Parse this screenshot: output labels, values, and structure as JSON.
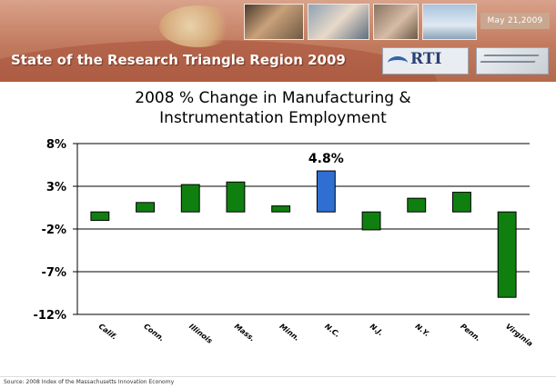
{
  "slide": {
    "header_title": "State of the Research Triangle Region 2009",
    "date": "May 21,2009",
    "logo_text": "RTI",
    "source": "Source: 2008 Index of the Massachusetts Innovation Economy"
  },
  "colors": {
    "bar_default": "#0f7f0f",
    "bar_highlight": "#2f6fd1",
    "bar_stroke": "#000000"
  },
  "chart_data": {
    "type": "bar",
    "title": "2008 % Change in Manufacturing & Instrumentation Employment",
    "categories": [
      "Calif.",
      "Conn.",
      "Illinois",
      "Mass.",
      "Minn.",
      "N.C.",
      "N.J.",
      "N.Y.",
      "Penn.",
      "Virginia"
    ],
    "values": [
      -1.0,
      1.1,
      3.2,
      3.5,
      0.7,
      4.8,
      -2.1,
      1.6,
      2.3,
      -10.0
    ],
    "highlight": "N.C.",
    "data_labels": {
      "N.C.": "4.8%"
    },
    "ylim": [
      -12,
      8
    ],
    "yticks": [
      8,
      3,
      -2,
      -7,
      -12
    ],
    "ytick_labels": [
      "8%",
      "3%",
      "-2%",
      "-7%",
      "-12%"
    ],
    "grid": true,
    "legend": false
  }
}
